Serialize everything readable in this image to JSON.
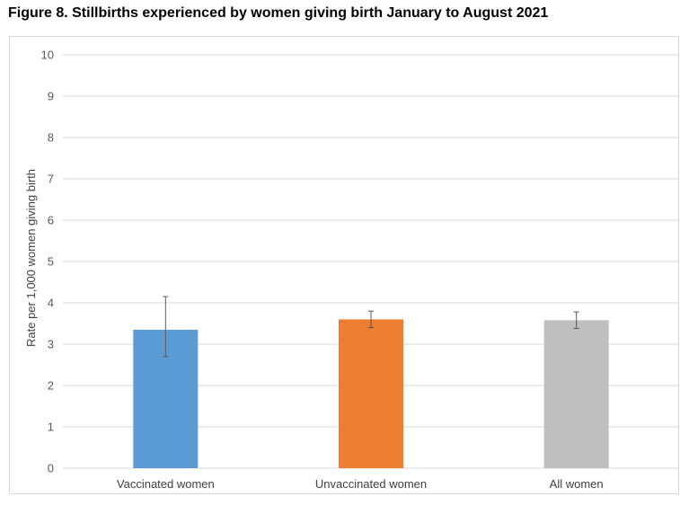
{
  "figure": {
    "title": "Figure 8. Stillbirths experienced by women giving birth January to August 2021"
  },
  "chart_data": {
    "type": "bar",
    "title": "",
    "xlabel": "",
    "ylabel": "Rate per 1,000 women giving birth",
    "ylim": [
      0,
      10
    ],
    "yticks": [
      0,
      1,
      2,
      3,
      4,
      5,
      6,
      7,
      8,
      9,
      10
    ],
    "grid": true,
    "legend": "none",
    "categories": [
      "Vaccinated women",
      "Unvaccinated women",
      "All women"
    ],
    "values": [
      3.35,
      3.6,
      3.58
    ],
    "error_low": [
      2.7,
      3.4,
      3.38
    ],
    "error_high": [
      4.15,
      3.8,
      3.78
    ],
    "colors": [
      "#5b9bd5",
      "#ed7d31",
      "#bfbfbf"
    ],
    "gridline_color": "#d9d9d9",
    "errorbar_color": "#595959"
  }
}
